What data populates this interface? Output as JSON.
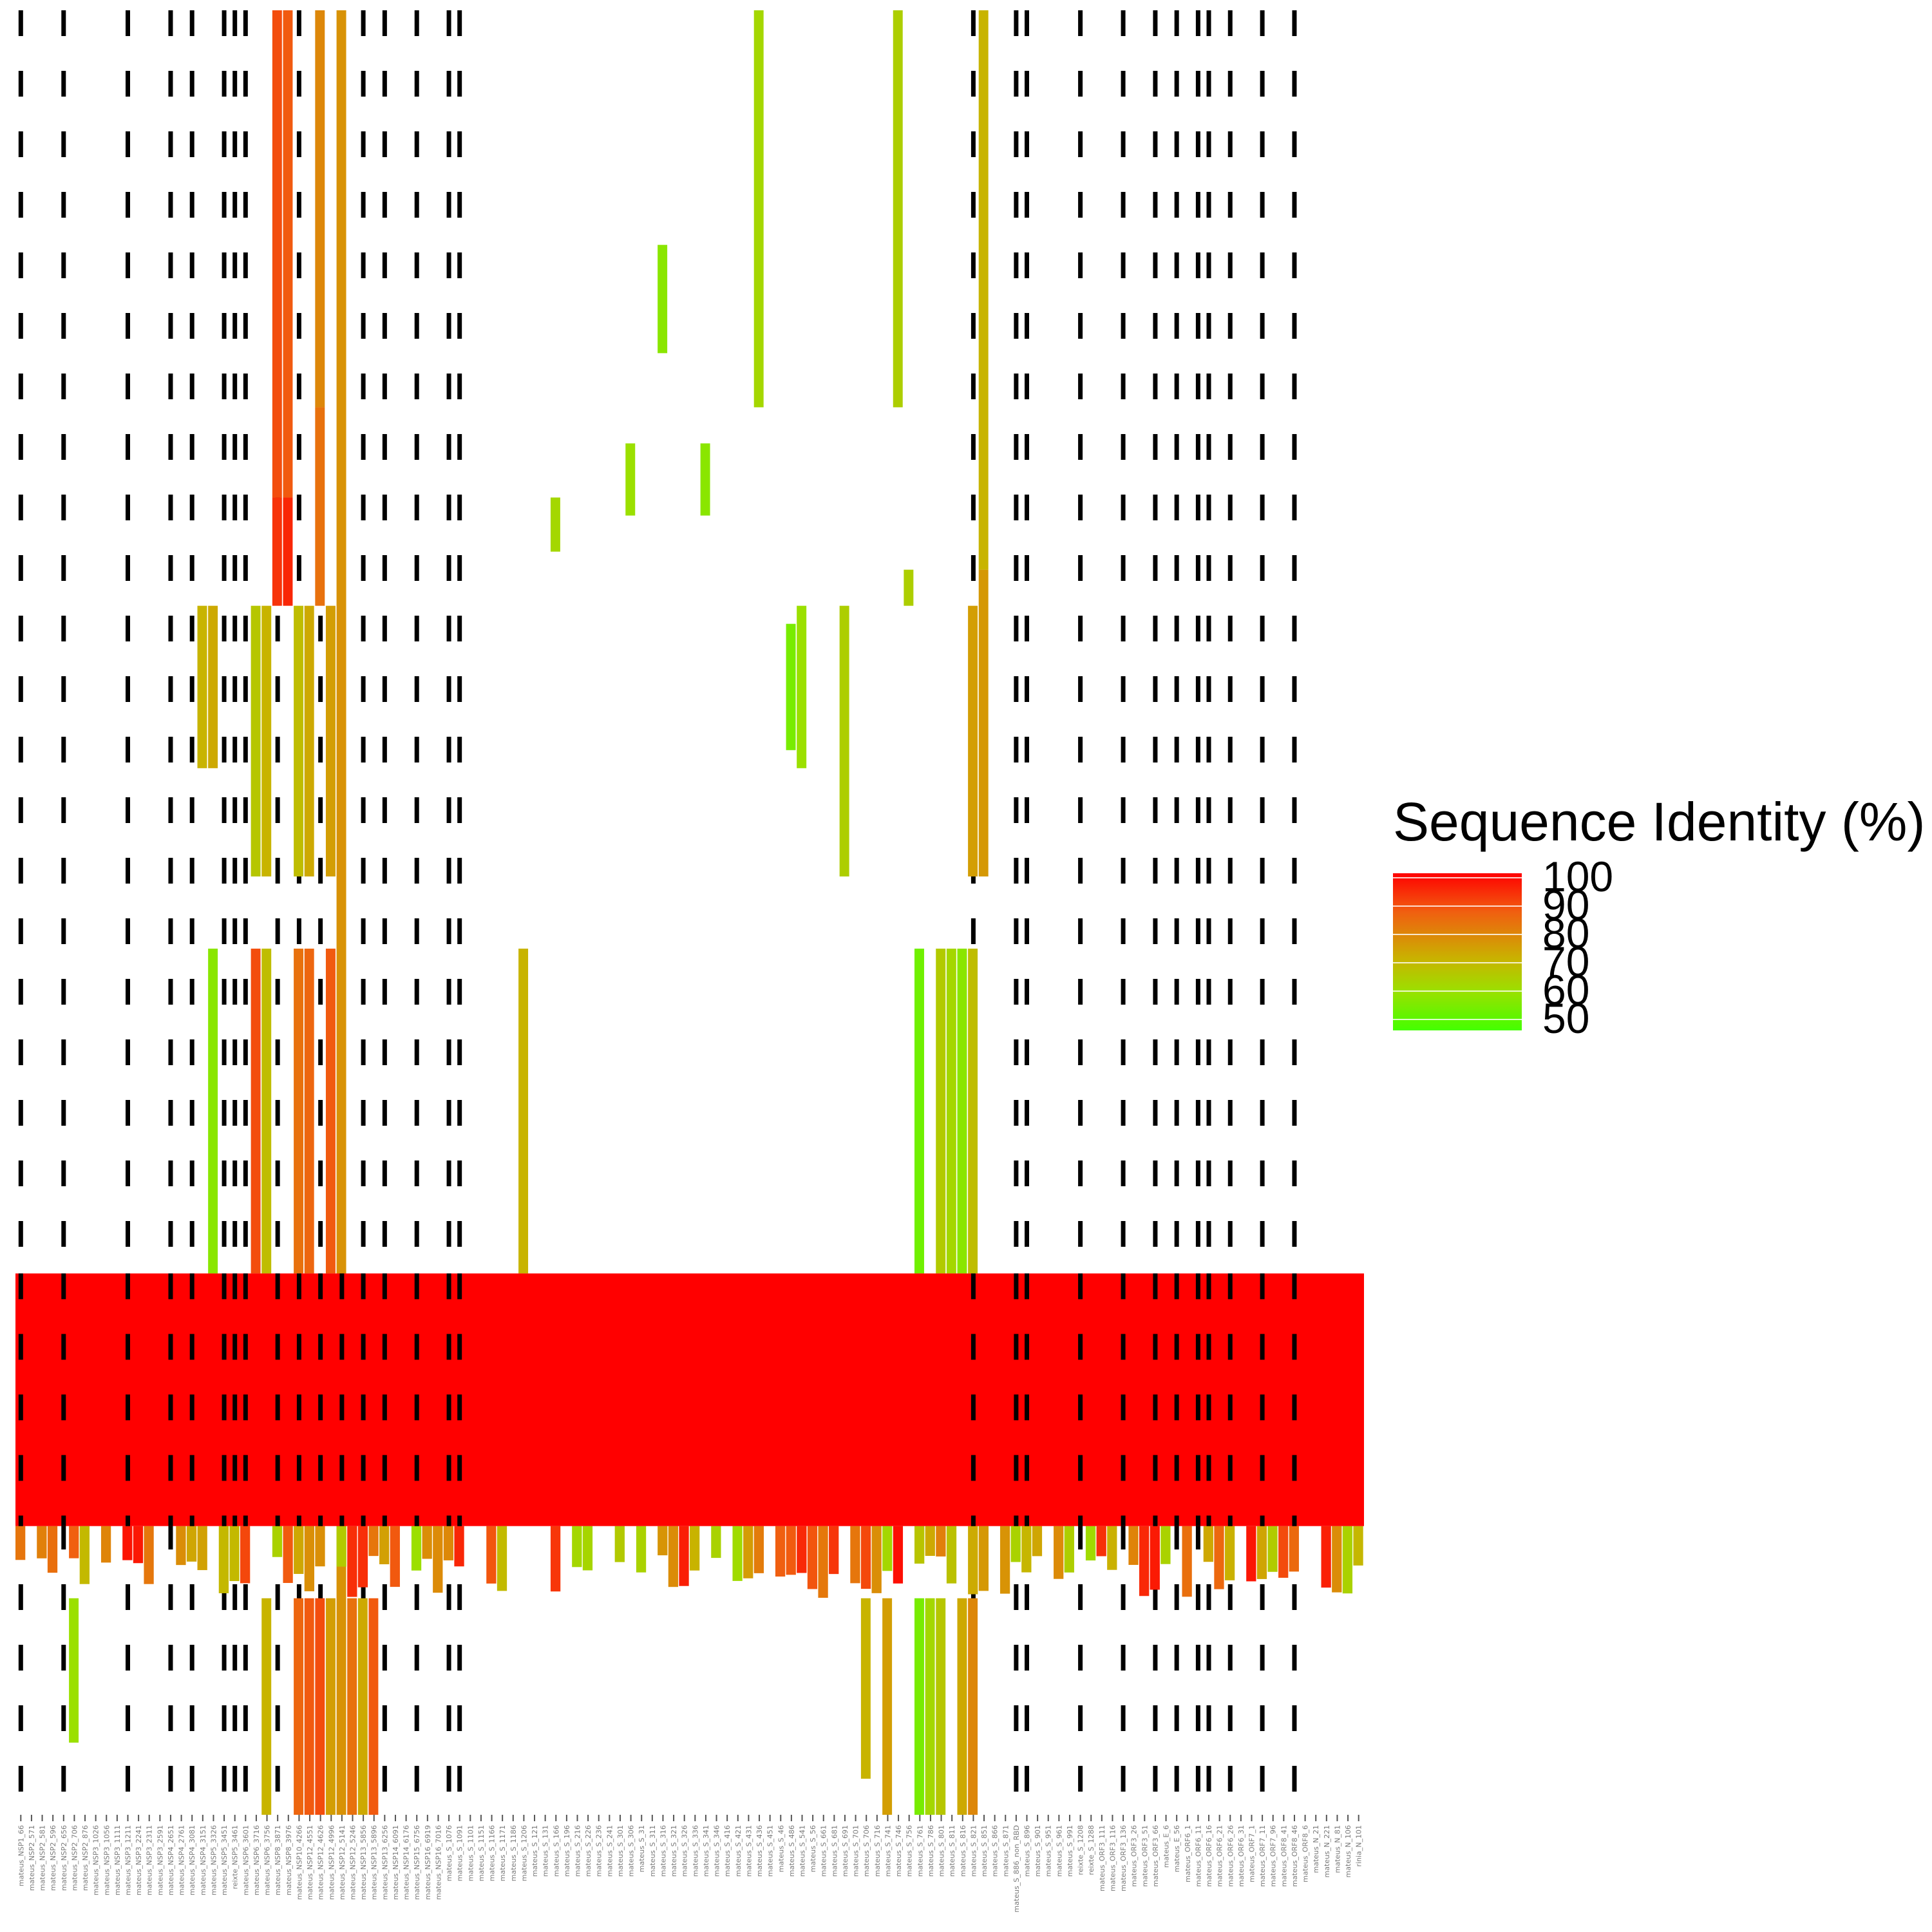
{
  "chart_data": {
    "type": "heatmap",
    "legend": {
      "title": "Sequence Identity (%)",
      "labels": [
        "100",
        "90",
        "80",
        "70",
        "60",
        "50"
      ],
      "values": [
        100,
        90,
        80,
        70,
        60,
        50
      ],
      "color_high": "#ff0000",
      "color_mid": "#c8b400",
      "color_low": "#44ff00",
      "placement": "right"
    },
    "x_labels": [
      "mateus_NSP1_66",
      "mateus_NSP2_571",
      "mateus_NSP2_581",
      "mateus_NSP2_596",
      "mateus_NSP2_656",
      "mateus_NSP2_706",
      "mateus_NSP2_876",
      "mateus_NSP3_1026",
      "mateus_NSP3_1056",
      "mateus_NSP3_1111",
      "mateus_NSP3_1211",
      "mateus_NSP3_2241",
      "mateus_NSP3_2311",
      "mateus_NSP3_2591",
      "mateus_NSP4_2651",
      "mateus_NSP4_2761",
      "mateus_NSP4_3081",
      "mateus_NSP4_3151",
      "mateus_NSP5_3326",
      "mateus_NSP5_3451",
      "reixte_NSP5_3461",
      "mateus_NSP6_3601",
      "mateus_NSP6_3716",
      "mateus_NSP6_3756",
      "mateus_NSP8_3871",
      "mateus_NSP8_3976",
      "mateus_NSP10_4266",
      "mateus_NSP12_4551",
      "mateus_NSP12_4626",
      "mateus_NSP12_4996",
      "mateus_NSP12_5141",
      "mateus_NSP12_5246",
      "mateus_NSP13_5856",
      "mateus_NSP13_5896",
      "mateus_NSP13_6256",
      "mateus_NSP14_6091",
      "mateus_NSP14_6176",
      "mateus_NSP15_6756",
      "mateus_NSP16_6919",
      "mateus_NSP16_7016",
      "mateus_S_1076",
      "mateus_S_1091",
      "mateus_S_1101",
      "mateus_S_1151",
      "mateus_S_1166",
      "mateus_S_1171",
      "mateus_S_1186",
      "mateus_S_1206",
      "mateus_S_121",
      "mateus_S_131",
      "mateus_S_166",
      "mateus_S_196",
      "mateus_S_216",
      "mateus_S_226",
      "mateus_S_236",
      "mateus_S_241",
      "mateus_S_301",
      "mateus_S_306",
      "mateus_S_31",
      "mateus_S_311",
      "mateus_S_316",
      "mateus_S_321",
      "mateus_S_326",
      "mateus_S_336",
      "mateus_S_341",
      "mateus_S_346",
      "mateus_S_416",
      "mateus_S_421",
      "mateus_S_431",
      "mateus_S_436",
      "mateus_S_451",
      "mateus_S_46",
      "mateus_S_486",
      "mateus_S_541",
      "mateus_S_56",
      "mateus_S_661",
      "mateus_S_681",
      "mateus_S_691",
      "mateus_S_701",
      "mateus_S_706",
      "mateus_S_716",
      "mateus_S_741",
      "mateus_S_746",
      "mateus_S_756",
      "mateus_S_761",
      "mateus_S_786",
      "mateus_S_801",
      "mateus_S_811",
      "mateus_S_816",
      "mateus_S_821",
      "mateus_S_851",
      "mateus_S_866",
      "mateus_S_871",
      "mateus_S_886_non_RBD",
      "mateus_S_896",
      "mateus_S_901",
      "mateus_S_951",
      "mateus_S_961",
      "mateus_S_991",
      "reixte_S_1208",
      "reixte_S_1288",
      "mateus_ORF3_111",
      "mateus_ORF3_116",
      "mateus_ORF3_136",
      "mateus_ORF3_26",
      "mateus_ORF3_51",
      "mateus_ORF3_66",
      "mateus_E_6",
      "mateus_E_56",
      "mateus_ORF6_1",
      "mateus_ORF6_11",
      "mateus_ORF6_16",
      "mateus_ORF6_21",
      "mateus_ORF6_26",
      "mateus_ORF6_31",
      "mateus_ORF7_1",
      "mateus_ORF7_11",
      "mateus_ORF7_96",
      "mateus_ORF8_41",
      "mateus_ORF8_46",
      "mateus_ORF8_6",
      "mateus_N_21",
      "mateus_N_221",
      "mateus_N_81",
      "mateus_N_106",
      "rinia_N_101"
    ],
    "dashed_column_positions": [
      1,
      2,
      4,
      5,
      6,
      7,
      8,
      9,
      10,
      11,
      12,
      13,
      14,
      15,
      16,
      17,
      18,
      19,
      20,
      21,
      22,
      23,
      24,
      25,
      26,
      27,
      28,
      29,
      30,
      31,
      32,
      33,
      34,
      35,
      36,
      37,
      38,
      39,
      40,
      41
    ],
    "n_rows": 100,
    "band_rows": [
      70,
      84
    ],
    "band_value": 100,
    "column_segments": [
      {
        "col": 24,
        "rows": [
          0,
          27
        ],
        "value": 88
      },
      {
        "col": 24,
        "rows": [
          27,
          33
        ],
        "value": 92
      },
      {
        "col": 25,
        "rows": [
          0,
          27
        ],
        "value": 86
      },
      {
        "col": 25,
        "rows": [
          27,
          33
        ],
        "value": 94
      },
      {
        "col": 28,
        "rows": [
          0,
          22
        ],
        "value": 78
      },
      {
        "col": 28,
        "rows": [
          22,
          33
        ],
        "value": 82
      },
      {
        "col": 30,
        "rows": [
          0,
          100
        ],
        "value": 76
      },
      {
        "col": 82,
        "rows": [
          0,
          22
        ],
        "value": 64
      },
      {
        "col": 90,
        "rows": [
          0,
          31
        ],
        "value": 70
      },
      {
        "col": 90,
        "rows": [
          31,
          48
        ],
        "value": 75
      },
      {
        "col": 18,
        "rows": [
          52,
          70
        ],
        "value": 58
      },
      {
        "col": 22,
        "rows": [
          52,
          70
        ],
        "value": 88
      },
      {
        "col": 23,
        "rows": [
          52,
          70
        ],
        "value": 68
      },
      {
        "col": 26,
        "rows": [
          52,
          70
        ],
        "value": 82
      },
      {
        "col": 27,
        "rows": [
          52,
          70
        ],
        "value": 84
      },
      {
        "col": 29,
        "rows": [
          52,
          70
        ],
        "value": 86
      },
      {
        "col": 47,
        "rows": [
          52,
          70
        ],
        "value": 70
      },
      {
        "col": 84,
        "rows": [
          52,
          70
        ],
        "value": 55
      },
      {
        "col": 86,
        "rows": [
          52,
          70
        ],
        "value": 65
      },
      {
        "col": 87,
        "rows": [
          52,
          70
        ],
        "value": 62
      },
      {
        "col": 88,
        "rows": [
          52,
          70
        ],
        "value": 58
      },
      {
        "col": 89,
        "rows": [
          52,
          70
        ],
        "value": 68
      },
      {
        "col": 22,
        "rows": [
          33,
          48
        ],
        "value": 66
      },
      {
        "col": 23,
        "rows": [
          33,
          48
        ],
        "value": 70
      },
      {
        "col": 26,
        "rows": [
          33,
          48
        ],
        "value": 68
      },
      {
        "col": 27,
        "rows": [
          33,
          48
        ],
        "value": 72
      },
      {
        "col": 29,
        "rows": [
          33,
          48
        ],
        "value": 74
      },
      {
        "col": 17,
        "rows": [
          33,
          42
        ],
        "value": 70
      },
      {
        "col": 18,
        "rows": [
          33,
          42
        ],
        "value": 72
      },
      {
        "col": 89,
        "rows": [
          33,
          48
        ],
        "value": 74
      },
      {
        "col": 73,
        "rows": [
          33,
          42
        ],
        "value": 60
      },
      {
        "col": 77,
        "rows": [
          33,
          48
        ],
        "value": 64
      },
      {
        "col": 23,
        "rows": [
          88,
          100
        ],
        "value": 70
      },
      {
        "col": 26,
        "rows": [
          88,
          100
        ],
        "value": 84
      },
      {
        "col": 27,
        "rows": [
          88,
          100
        ],
        "value": 86
      },
      {
        "col": 28,
        "rows": [
          88,
          100
        ],
        "value": 88
      },
      {
        "col": 29,
        "rows": [
          88,
          100
        ],
        "value": 74
      },
      {
        "col": 31,
        "rows": [
          88,
          100
        ],
        "value": 82
      },
      {
        "col": 32,
        "rows": [
          88,
          100
        ],
        "value": 72
      },
      {
        "col": 33,
        "rows": [
          88,
          100
        ],
        "value": 86
      },
      {
        "col": 79,
        "rows": [
          88,
          98
        ],
        "value": 70
      },
      {
        "col": 81,
        "rows": [
          88,
          100
        ],
        "value": 74
      },
      {
        "col": 84,
        "rows": [
          88,
          100
        ],
        "value": 56
      },
      {
        "col": 85,
        "rows": [
          88,
          100
        ],
        "value": 62
      },
      {
        "col": 86,
        "rows": [
          88,
          100
        ],
        "value": 66
      },
      {
        "col": 88,
        "rows": [
          88,
          100
        ],
        "value": 72
      },
      {
        "col": 89,
        "rows": [
          88,
          100
        ],
        "value": 78
      },
      {
        "col": 5,
        "rows": [
          88,
          96
        ],
        "value": 60
      },
      {
        "col": 60,
        "rows": [
          13,
          19
        ],
        "value": 58
      },
      {
        "col": 69,
        "rows": [
          0,
          22
        ],
        "value": 62
      },
      {
        "col": 57,
        "rows": [
          24,
          28
        ],
        "value": 60
      },
      {
        "col": 64,
        "rows": [
          24,
          28
        ],
        "value": 58
      },
      {
        "col": 50,
        "rows": [
          27,
          30
        ],
        "value": 62
      },
      {
        "col": 72,
        "rows": [
          34,
          41
        ],
        "value": 56
      },
      {
        "col": 83,
        "rows": [
          31,
          33
        ],
        "value": 64
      }
    ],
    "lower_band": {
      "rows": [
        84,
        88
      ],
      "value_range": [
        60,
        98
      ]
    }
  }
}
